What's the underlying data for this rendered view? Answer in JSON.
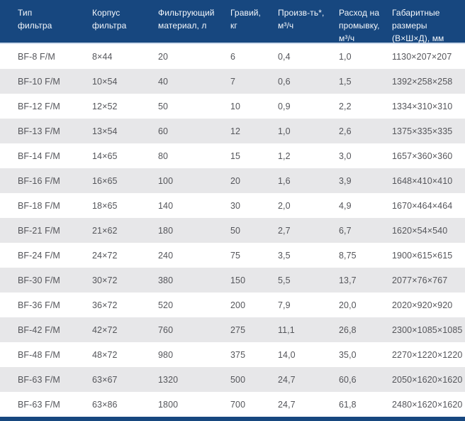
{
  "colors": {
    "header_bg": "#17477f",
    "header_text": "#f5f8fc",
    "header_separator": "#cfdcee",
    "row_bg": "#ffffff",
    "row_alt_bg": "#e7e7e9",
    "body_text": "#55565b",
    "footer_bar_bg": "#17477f"
  },
  "table": {
    "columns": [
      {
        "key": "filter-type",
        "label": "Тип\nфильтра"
      },
      {
        "key": "body-size",
        "label": "Корпус\nфильтра"
      },
      {
        "key": "media-volume",
        "label": "Фильтрующий\nматериал, л"
      },
      {
        "key": "gravel",
        "label": "Гравий,\nкг"
      },
      {
        "key": "capacity",
        "label": "Произв-ть*,\nм³/ч"
      },
      {
        "key": "backwash-flow",
        "label": "Расход на\nпромывку,\nм³/ч"
      },
      {
        "key": "dimensions",
        "label": "Габаритные\nразмеры\n(В×Ш×Д), мм"
      }
    ],
    "rows": [
      [
        "BF-8 F/M",
        "8×44",
        "20",
        "6",
        "0,4",
        "1,0",
        "1130×207×207"
      ],
      [
        "BF-10 F/M",
        "10×54",
        "40",
        "7",
        "0,6",
        "1,5",
        "1392×258×258"
      ],
      [
        "BF-12 F/M",
        "12×52",
        "50",
        "10",
        "0,9",
        "2,2",
        "1334×310×310"
      ],
      [
        "BF-13 F/M",
        "13×54",
        "60",
        "12",
        "1,0",
        "2,6",
        "1375×335×335"
      ],
      [
        "BF-14 F/M",
        "14×65",
        "80",
        "15",
        "1,2",
        "3,0",
        "1657×360×360"
      ],
      [
        "BF-16 F/M",
        "16×65",
        "100",
        "20",
        "1,6",
        "3,9",
        "1648×410×410"
      ],
      [
        "BF-18 F/M",
        "18×65",
        "140",
        "30",
        "2,0",
        "4,9",
        "1670×464×464"
      ],
      [
        "BF-21 F/M",
        "21×62",
        "180",
        "50",
        "2,7",
        "6,7",
        "1620×54×540"
      ],
      [
        "BF-24 F/M",
        "24×72",
        "240",
        "75",
        "3,5",
        "8,75",
        "1900×615×615"
      ],
      [
        "BF-30 F/M",
        "30×72",
        "380",
        "150",
        "5,5",
        "13,7",
        "2077×76×767"
      ],
      [
        "BF-36 F/M",
        "36×72",
        "520",
        "200",
        "7,9",
        "20,0",
        "2020×920×920"
      ],
      [
        "BF-42 F/M",
        "42×72",
        "760",
        "275",
        "11,1",
        "26,8",
        "2300×1085×1085"
      ],
      [
        "BF-48 F/M",
        "48×72",
        "980",
        "375",
        "14,0",
        "35,0",
        "2270×1220×1220"
      ],
      [
        "BF-63 F/M",
        "63×67",
        "1320",
        "500",
        "24,7",
        "60,6",
        "2050×1620×1620"
      ],
      [
        "BF-63 F/M",
        "63×86",
        "1800",
        "700",
        "24,7",
        "61,8",
        "2480×1620×1620"
      ]
    ]
  }
}
